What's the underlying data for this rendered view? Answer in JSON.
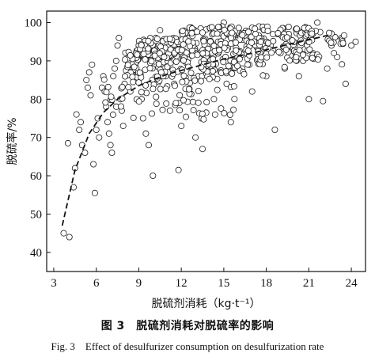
{
  "chart_data": {
    "type": "scatter",
    "title": "",
    "xlabel": "脱硫剂消耗（kg·t⁻¹）",
    "ylabel": "脱硫率/%",
    "xlim": [
      2.5,
      25
    ],
    "ylim": [
      35,
      103
    ],
    "xticks": [
      3,
      6,
      9,
      12,
      15,
      18,
      21,
      24
    ],
    "yticks": [
      40,
      50,
      60,
      70,
      80,
      90,
      100
    ],
    "grid": false,
    "legend": "none",
    "marker": "open-circle",
    "points": [
      [
        3.7,
        45
      ],
      [
        4.1,
        44
      ],
      [
        4.0,
        68.5
      ],
      [
        4.4,
        57
      ],
      [
        4.5,
        62
      ],
      [
        4.6,
        76
      ],
      [
        4.8,
        72
      ],
      [
        4.9,
        74
      ],
      [
        5.0,
        68
      ],
      [
        5.2,
        66
      ],
      [
        5.3,
        85
      ],
      [
        5.4,
        83
      ],
      [
        5.5,
        87
      ],
      [
        5.6,
        81
      ],
      [
        5.7,
        89
      ],
      [
        5.8,
        63
      ],
      [
        5.9,
        55.5
      ],
      [
        6.0,
        72
      ],
      [
        6.1,
        75
      ],
      [
        6.2,
        70
      ],
      [
        6.4,
        83
      ],
      [
        6.5,
        86
      ],
      [
        6.6,
        82
      ],
      [
        6.7,
        78
      ],
      [
        6.8,
        74
      ],
      [
        6.9,
        71
      ],
      [
        7.0,
        68
      ],
      [
        7.1,
        66
      ],
      [
        7.2,
        86
      ],
      [
        7.3,
        88
      ],
      [
        7.4,
        90
      ],
      [
        7.5,
        94
      ],
      [
        7.6,
        96
      ],
      [
        7.7,
        80
      ],
      [
        7.8,
        77
      ],
      [
        7.9,
        73
      ],
      [
        8.0,
        84
      ],
      [
        8.2,
        87
      ],
      [
        8.4,
        82
      ],
      [
        8.6,
        90
      ],
      [
        8.8,
        92
      ],
      [
        9.0,
        94
      ],
      [
        9.2,
        80
      ],
      [
        9.3,
        75
      ],
      [
        9.5,
        71
      ],
      [
        9.7,
        68
      ],
      [
        10.0,
        60
      ],
      [
        10.2,
        96
      ],
      [
        10.5,
        98
      ],
      [
        10.8,
        88
      ],
      [
        11.0,
        92
      ],
      [
        11.2,
        77
      ],
      [
        11.5,
        84
      ],
      [
        11.8,
        61.5
      ],
      [
        12.0,
        73
      ],
      [
        12.2,
        90
      ],
      [
        12.5,
        96
      ],
      [
        12.8,
        94
      ],
      [
        13.0,
        70
      ],
      [
        13.2,
        86
      ],
      [
        13.5,
        67
      ],
      [
        13.8,
        88
      ],
      [
        14.0,
        92
      ],
      [
        14.3,
        80
      ],
      [
        14.6,
        95
      ],
      [
        15.0,
        100
      ],
      [
        15.2,
        84
      ],
      [
        15.5,
        74
      ],
      [
        15.8,
        90
      ],
      [
        16.0,
        96
      ],
      [
        16.3,
        88
      ],
      [
        16.6,
        92
      ],
      [
        17.0,
        82
      ],
      [
        17.3,
        95
      ],
      [
        17.6,
        90
      ],
      [
        18.0,
        86
      ],
      [
        18.3,
        94
      ],
      [
        18.6,
        72
      ],
      [
        19.0,
        92
      ],
      [
        19.3,
        88
      ],
      [
        19.6,
        96
      ],
      [
        20.0,
        94
      ],
      [
        20.3,
        86
      ],
      [
        20.6,
        90
      ],
      [
        21.0,
        80
      ],
      [
        21.3,
        92
      ],
      [
        21.6,
        100
      ],
      [
        22.0,
        79.5
      ],
      [
        22.3,
        88
      ],
      [
        22.6,
        94
      ],
      [
        23.0,
        91
      ],
      [
        23.3,
        96
      ],
      [
        23.6,
        84
      ],
      [
        24.0,
        94
      ],
      [
        24.3,
        95
      ],
      [
        8.5,
        88.5
      ],
      [
        9.8,
        89.5
      ],
      [
        10.4,
        84.5
      ],
      [
        11.6,
        93.5
      ],
      [
        12.9,
        85.5
      ],
      [
        13.6,
        91.5
      ],
      [
        14.8,
        87.5
      ],
      [
        16.8,
        89
      ],
      [
        17.8,
        93.5
      ],
      [
        18.8,
        97
      ],
      [
        19.8,
        90.5
      ],
      [
        20.8,
        96.5
      ],
      [
        21.8,
        97.5
      ],
      [
        9.4,
        91
      ],
      [
        10.9,
        86
      ]
    ],
    "cloud": [
      {
        "x": [
          8,
          9
        ],
        "y": [
          85,
          93
        ],
        "n": 35
      },
      {
        "x": [
          9,
          12
        ],
        "y": [
          83,
          96
        ],
        "n": 120
      },
      {
        "x": [
          12,
          15
        ],
        "y": [
          84,
          99
        ],
        "n": 130
      },
      {
        "x": [
          15,
          18
        ],
        "y": [
          86,
          99
        ],
        "n": 110
      },
      {
        "x": [
          18,
          21
        ],
        "y": [
          88,
          99
        ],
        "n": 70
      },
      {
        "x": [
          21,
          23.5
        ],
        "y": [
          88,
          98
        ],
        "n": 30
      },
      {
        "x": [
          6.5,
          9
        ],
        "y": [
          74,
          86
        ],
        "n": 20
      },
      {
        "x": [
          9,
          16
        ],
        "y": [
          74,
          84
        ],
        "n": 45
      }
    ],
    "trend_line": {
      "style": "dashed",
      "x": [
        3.6,
        4.5,
        5.5,
        6.5,
        7.5,
        9.0,
        11.0,
        13.0,
        15.0,
        17.0,
        19.0,
        21.0,
        22.5
      ],
      "y": [
        47.0,
        61.5,
        71.0,
        76.5,
        80.0,
        83.5,
        86.5,
        88.5,
        90.5,
        92.0,
        93.8,
        95.5,
        96.8
      ]
    }
  },
  "caption": {
    "cn": "图 3　脱硫剂消耗对脱硫率的影响",
    "en": "Fig. 3　Effect of desulfurizer consumption on desulfurization rate"
  },
  "style": {
    "axis_color": "#111111",
    "marker_stroke": "#1a1a1a",
    "marker_fill": "#ffffff",
    "trend_color": "#111111"
  }
}
